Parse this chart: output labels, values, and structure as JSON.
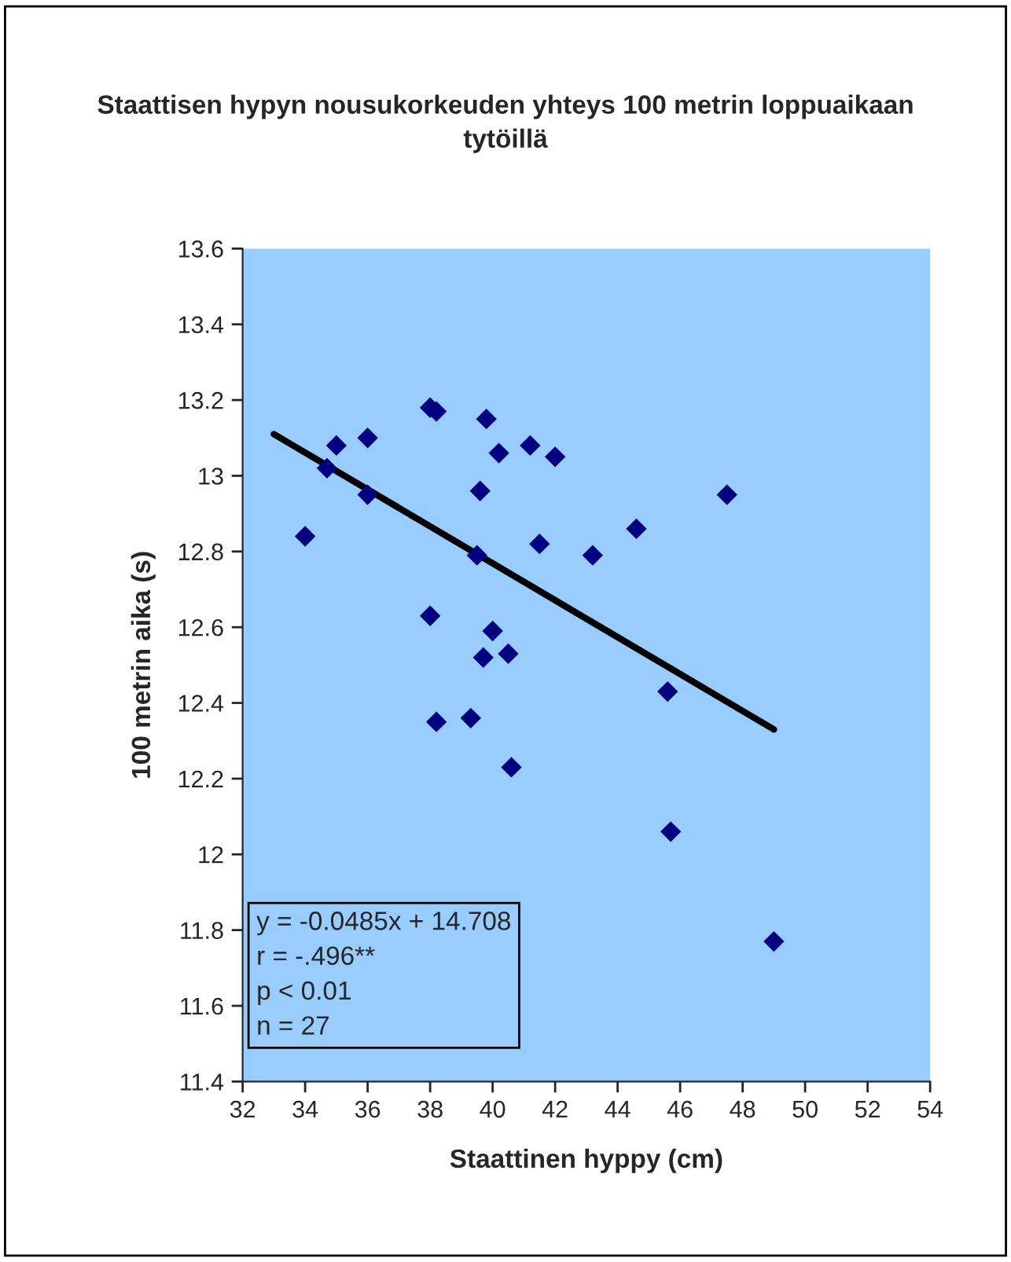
{
  "chart_data": {
    "type": "scatter",
    "title": "Staattisen hypyn nousukorkeuden yhteys 100 metrin loppuaikaan tytöillä",
    "xlabel": "Staattinen hyppy (cm)",
    "ylabel": "100 metrin aika (s)",
    "xlim": [
      32,
      54
    ],
    "xticks": [
      32,
      34,
      36,
      38,
      40,
      42,
      44,
      46,
      48,
      50,
      52,
      54
    ],
    "ylim": [
      11.4,
      13.6
    ],
    "yticks": [
      11.4,
      11.6,
      11.8,
      12,
      12.2,
      12.4,
      12.6,
      12.8,
      13,
      13.2,
      13.4,
      13.6
    ],
    "grid": false,
    "legend": false,
    "marker": "diamond",
    "series": [
      {
        "color": "#000080",
        "x": [
          34.0,
          34.7,
          35.0,
          36.0,
          36.0,
          38.0,
          38.2,
          38.0,
          38.2,
          39.3,
          39.8,
          39.6,
          39.5,
          40.2,
          39.7,
          40.0,
          40.5,
          40.6,
          41.2,
          41.5,
          42.0,
          43.2,
          44.6,
          47.5,
          45.6,
          45.7,
          49.0
        ],
        "values": [
          12.84,
          13.02,
          13.08,
          13.1,
          12.95,
          13.18,
          13.17,
          12.63,
          12.35,
          12.36,
          13.15,
          12.96,
          12.79,
          13.06,
          12.52,
          12.59,
          12.53,
          12.23,
          13.08,
          12.82,
          13.05,
          12.79,
          12.86,
          12.95,
          12.43,
          12.06,
          11.77
        ]
      },
      {
        "type": "line",
        "color": "#000000",
        "x": [
          33,
          49
        ],
        "values": [
          13.11,
          12.33
        ],
        "line_style": "solid",
        "marker": "none"
      }
    ],
    "annotations": [
      "y = -0.0485x + 14.708",
      "r = -.496**",
      "p < 0.01",
      "n = 27"
    ]
  }
}
